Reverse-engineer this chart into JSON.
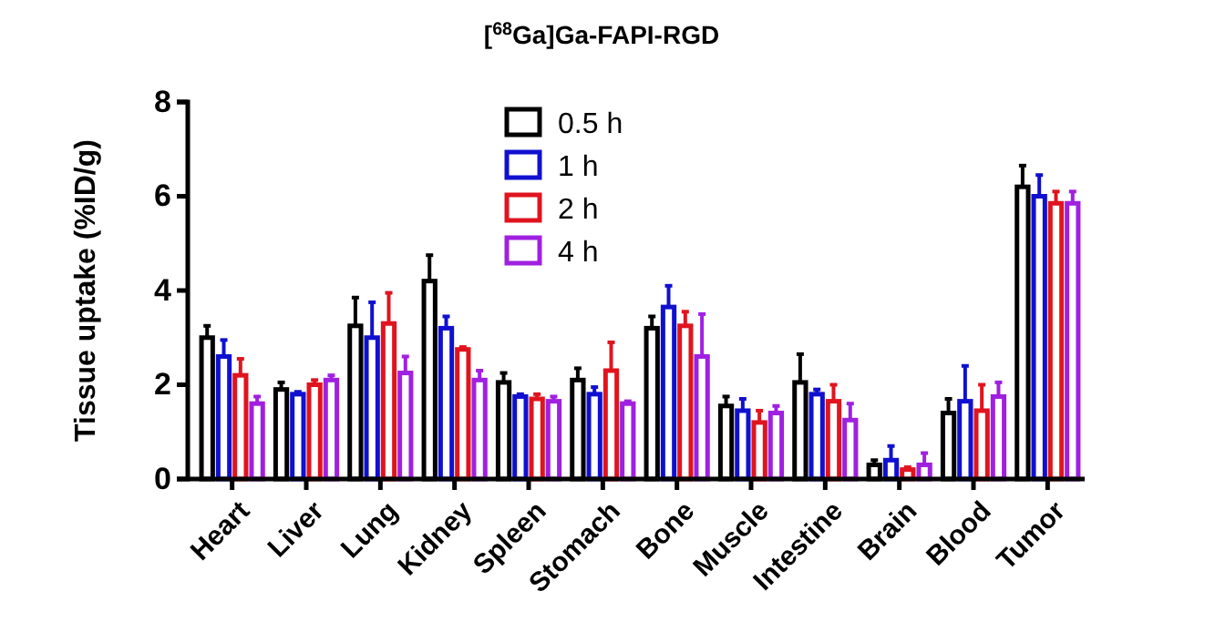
{
  "chart_data": {
    "type": "bar",
    "title": "[$^{68}$Ga]Ga-FAPI-RGD",
    "ylabel": "Tissue uptake (%ID/g)",
    "categories": [
      "Heart",
      "Liver",
      "Lung",
      "Kidney",
      "Spleen",
      "Stomach",
      "Bone",
      "Muscle",
      "Intestine",
      "Brain",
      "Blood",
      "Tumor"
    ],
    "series": [
      {
        "name": "0.5 h",
        "color": "#000000",
        "values": [
          3.0,
          1.9,
          3.25,
          4.2,
          2.05,
          2.1,
          3.2,
          1.55,
          2.05,
          0.3,
          1.4,
          6.2
        ],
        "errors": [
          [
            3.0,
            3.25
          ],
          [
            1.9,
            2.05
          ],
          [
            3.25,
            3.85
          ],
          [
            4.2,
            4.75
          ],
          [
            2.05,
            2.25
          ],
          [
            2.1,
            2.35
          ],
          [
            3.2,
            3.45
          ],
          [
            1.55,
            1.75
          ],
          [
            2.05,
            2.65
          ],
          [
            0.3,
            0.4
          ],
          [
            1.4,
            1.7
          ],
          [
            6.2,
            6.65
          ]
        ]
      },
      {
        "name": "1 h",
        "color": "#1010d0",
        "values": [
          2.6,
          1.8,
          3.0,
          3.2,
          1.75,
          1.8,
          3.65,
          1.45,
          1.8,
          0.4,
          1.65,
          6.0
        ],
        "errors": [
          [
            2.6,
            2.95
          ],
          [
            1.8,
            1.85
          ],
          [
            3.0,
            3.75
          ],
          [
            3.2,
            3.45
          ],
          [
            1.75,
            1.8
          ],
          [
            1.8,
            1.95
          ],
          [
            3.65,
            4.1
          ],
          [
            1.45,
            1.7
          ],
          [
            1.8,
            1.9
          ],
          [
            0.4,
            0.7
          ],
          [
            1.65,
            2.4
          ],
          [
            6.0,
            6.45
          ]
        ]
      },
      {
        "name": "2 h",
        "color": "#e0141e",
        "values": [
          2.2,
          2.0,
          3.3,
          2.75,
          1.7,
          2.3,
          3.25,
          1.2,
          1.65,
          0.2,
          1.45,
          5.85
        ],
        "errors": [
          [
            2.2,
            2.55
          ],
          [
            2.0,
            2.1
          ],
          [
            3.3,
            3.95
          ],
          [
            2.75,
            2.8
          ],
          [
            1.7,
            1.8
          ],
          [
            2.3,
            2.9
          ],
          [
            3.25,
            3.55
          ],
          [
            1.2,
            1.45
          ],
          [
            1.65,
            2.0
          ],
          [
            0.2,
            0.25
          ],
          [
            1.45,
            2.0
          ],
          [
            5.85,
            6.1
          ]
        ]
      },
      {
        "name": "4 h",
        "color": "#a020e0",
        "values": [
          1.6,
          2.1,
          2.25,
          2.1,
          1.65,
          1.6,
          2.6,
          1.4,
          1.25,
          0.3,
          1.75,
          5.85
        ],
        "errors": [
          [
            1.6,
            1.75
          ],
          [
            2.1,
            2.2
          ],
          [
            2.25,
            2.6
          ],
          [
            2.1,
            2.3
          ],
          [
            1.65,
            1.75
          ],
          [
            1.6,
            1.65
          ],
          [
            2.6,
            3.5
          ],
          [
            1.4,
            1.55
          ],
          [
            1.25,
            1.6
          ],
          [
            0.3,
            0.55
          ],
          [
            1.75,
            2.05
          ],
          [
            5.85,
            6.1
          ]
        ]
      }
    ],
    "ylim": [
      0,
      8
    ],
    "yticks": [
      0,
      2,
      4,
      6,
      8
    ],
    "grid": false,
    "legend": "top"
  }
}
